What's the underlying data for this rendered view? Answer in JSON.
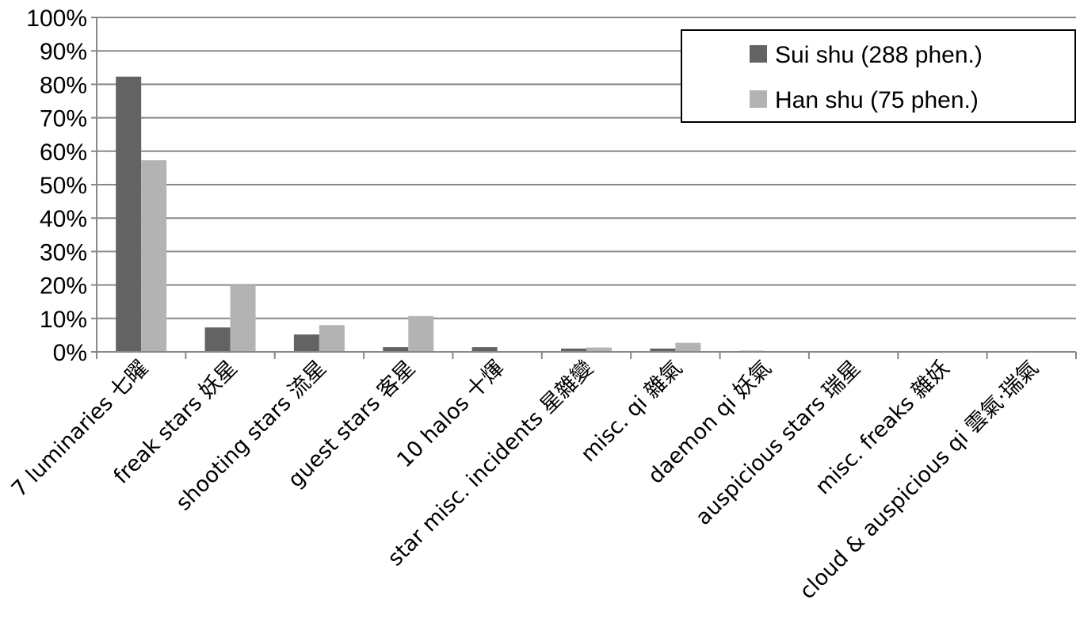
{
  "chart_data": {
    "type": "bar",
    "categories": [
      "7 luminaries 七曜",
      "freak stars 妖星",
      "shooting stars 流星",
      "guest stars 客星",
      "10 halos 十煇",
      "star misc. incidents 星雜變",
      "misc. qi 雜氣",
      "daemon qi 妖氣",
      "auspicious stars 瑞星",
      "misc. freaks 雜妖",
      "cloud & auspicious qi 雲氣·瑞氣"
    ],
    "series": [
      {
        "name": "Sui shu (288 phen.)",
        "color": "#636363",
        "values": [
          82.3,
          7.3,
          5.2,
          1.4,
          1.4,
          1.0,
          1.0,
          0.3,
          0,
          0,
          0
        ]
      },
      {
        "name": "Han shu (75 phen.)",
        "color": "#b3b3b3",
        "values": [
          57.3,
          20.0,
          8.0,
          10.7,
          0,
          1.3,
          2.7,
          0,
          0,
          0,
          0
        ]
      }
    ],
    "yticks": [
      "0%",
      "10%",
      "20%",
      "30%",
      "40%",
      "50%",
      "60%",
      "70%",
      "80%",
      "90%",
      "100%"
    ],
    "ylim": [
      0,
      100
    ],
    "grid": true,
    "legend_position": "top-right"
  }
}
